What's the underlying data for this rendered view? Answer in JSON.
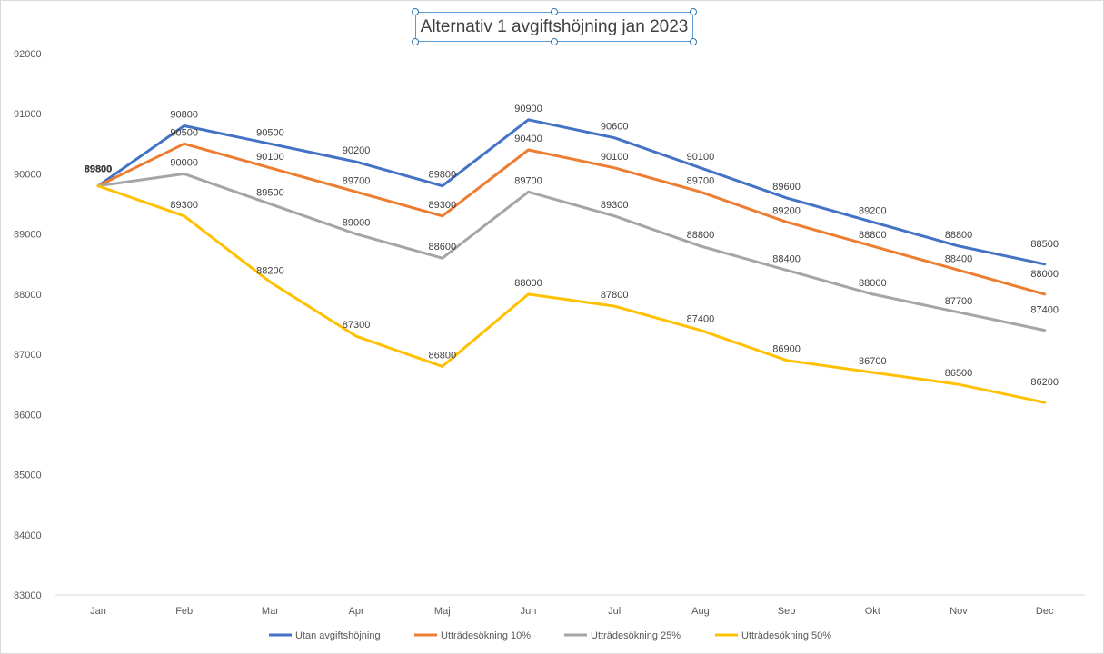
{
  "chart_data": {
    "type": "line",
    "title": "Alternativ 1 avgiftshöjning jan 2023",
    "xlabel": "",
    "ylabel": "",
    "categories": [
      "Jan",
      "Feb",
      "Mar",
      "Apr",
      "Maj",
      "Jun",
      "Jul",
      "Aug",
      "Sep",
      "Okt",
      "Nov",
      "Dec"
    ],
    "ylim": [
      83000,
      92000
    ],
    "yticks": [
      83000,
      84000,
      85000,
      86000,
      87000,
      88000,
      89000,
      90000,
      91000,
      92000
    ],
    "grid": false,
    "legend_position": "bottom",
    "data_labels": true,
    "series": [
      {
        "name": "Utan avgiftshöjning",
        "color": "#4472c4",
        "values": [
          89800,
          90800,
          90500,
          90200,
          89800,
          90900,
          90600,
          90100,
          89600,
          89200,
          88800,
          88500
        ]
      },
      {
        "name": "Utträdesökning 10%",
        "color": "#ed7d31",
        "values": [
          89800,
          90500,
          90100,
          89700,
          89300,
          90400,
          90100,
          89700,
          89200,
          88800,
          88400,
          88000
        ]
      },
      {
        "name": "Utträdesökning 25%",
        "color": "#a5a5a5",
        "values": [
          89800,
          90000,
          89500,
          89000,
          88600,
          89700,
          89300,
          88800,
          88400,
          88000,
          87700,
          87400
        ]
      },
      {
        "name": "Utträdesökning 50%",
        "color": "#ffc000",
        "values": [
          89800,
          89300,
          88200,
          87300,
          86800,
          88000,
          87800,
          87400,
          86900,
          86700,
          86500,
          86200
        ]
      }
    ]
  }
}
